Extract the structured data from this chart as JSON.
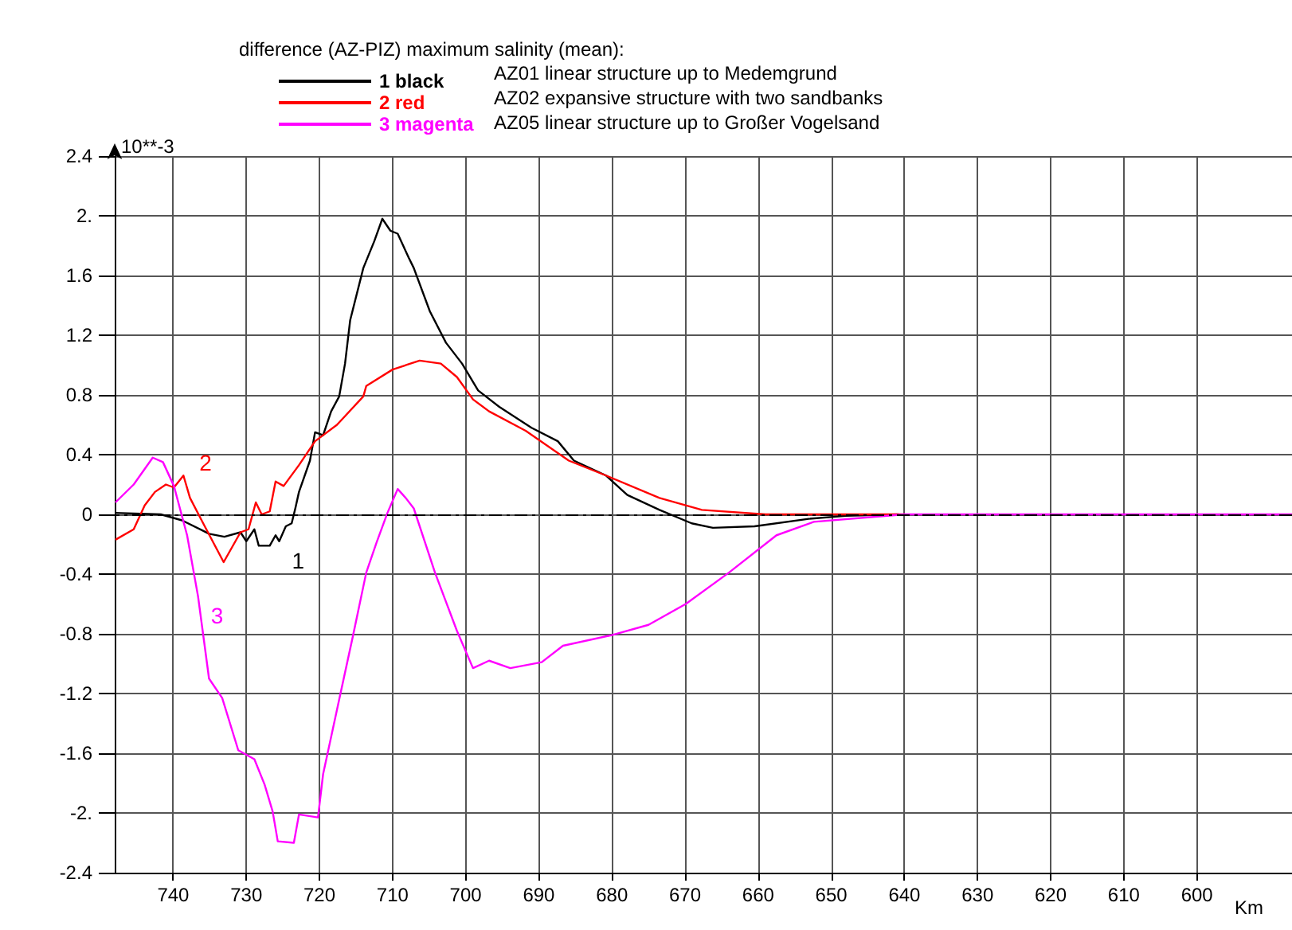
{
  "chart_data": {
    "type": "line",
    "legend_title": "difference (AZ-PIZ) maximum salinity (mean):",
    "ylabel": "10**-3",
    "xlabel": "Km",
    "xlim": [
      748,
      587
    ],
    "xticks": [
      740,
      730,
      720,
      710,
      700,
      690,
      680,
      670,
      660,
      650,
      640,
      630,
      620,
      610,
      600
    ],
    "ylim": [
      -2.4,
      2.4
    ],
    "yticks": [
      -2.4,
      {
        "value": -2,
        "label": "-2."
      },
      -1.6,
      -1.2,
      -0.8,
      -0.4,
      0,
      0.4,
      0.8,
      1.2,
      1.6,
      {
        "value": 2,
        "label": "2."
      },
      2.4
    ],
    "grid": true,
    "legend": "top",
    "marker": "none",
    "line_style": "solid",
    "ref_lines": [
      {
        "axis": "y",
        "value": 0,
        "color": "#000000",
        "line_style": "dashed"
      }
    ],
    "annotations": [
      "AZ01 linear structure up to Medemgrund",
      "AZ02 expansive structure with two sandbanks",
      "AZ05 linear structure up to Großer Vogelsand",
      {
        "text": "1",
        "x": 725.5,
        "y": -0.18
      },
      {
        "text": "2",
        "x": 738.6,
        "y": 0.26
      },
      {
        "text": "3",
        "x": 736.6,
        "y": -0.55
      }
    ],
    "series": [
      {
        "name": "1 black",
        "color": "#000000",
        "x": [
          748,
          741.7,
          738.8,
          735.1,
          733,
          730.8,
          730,
          728.9,
          728.3,
          726.8,
          726,
          725.5,
          724.6,
          723.8,
          723.3,
          722.8,
          721.3,
          720.6,
          719.5,
          718.4,
          717.3,
          716.5,
          715.8,
          714,
          712.5,
          711.4,
          710.3,
          709.3,
          707.8,
          707.1,
          704.9,
          702.7,
          700.5,
          698.3,
          695.4,
          691,
          687.4,
          685.2,
          680.8,
          677.9,
          673.5,
          669.1,
          666.2,
          660.5,
          653.1,
          648,
          640.8
        ],
        "values": [
          0.01,
          0,
          -0.04,
          -0.13,
          -0.15,
          -0.12,
          -0.18,
          -0.1,
          -0.21,
          -0.21,
          -0.14,
          -0.18,
          -0.08,
          -0.06,
          0.04,
          0.15,
          0.36,
          0.55,
          0.53,
          0.69,
          0.79,
          1.01,
          1.3,
          1.65,
          1.83,
          1.98,
          1.9,
          1.88,
          1.72,
          1.65,
          1.36,
          1.15,
          1.01,
          0.83,
          0.72,
          0.58,
          0.49,
          0.36,
          0.26,
          0.13,
          0.03,
          -0.06,
          -0.09,
          -0.08,
          -0.03,
          -0.01,
          0
        ]
      },
      {
        "name": "2 red",
        "color": "#ff0000",
        "x": [
          747.9,
          745.4,
          743.9,
          742.5,
          741,
          739.9,
          738.6,
          737.7,
          735.9,
          733.1,
          730.8,
          729.7,
          728.7,
          727.9,
          726.8,
          726,
          724.9,
          722.8,
          720.6,
          717.6,
          714,
          713.6,
          710,
          706.3,
          703.4,
          701.2,
          699,
          696.8,
          691.8,
          685.9,
          680.8,
          673.5,
          667.7,
          659,
          640
        ],
        "values": [
          -0.17,
          -0.1,
          0.06,
          0.15,
          0.2,
          0.18,
          0.26,
          0.11,
          -0.06,
          -0.32,
          -0.12,
          -0.1,
          0.08,
          0,
          0.02,
          0.22,
          0.19,
          0.33,
          0.49,
          0.6,
          0.79,
          0.86,
          0.97,
          1.03,
          1.01,
          0.92,
          0.77,
          0.69,
          0.56,
          0.36,
          0.26,
          0.11,
          0.03,
          0,
          0
        ]
      },
      {
        "name": "3 magenta",
        "color": "#ff00ff",
        "x": [
          747.9,
          745.4,
          742.8,
          741.4,
          739.9,
          738.1,
          736.6,
          735.1,
          733.3,
          731.1,
          728.9,
          727.5,
          726.4,
          725.7,
          723.5,
          722.8,
          720.2,
          719.5,
          717.3,
          715.4,
          713.6,
          712.2,
          710.7,
          709.3,
          708.2,
          707.1,
          704.2,
          701.2,
          699,
          696.8,
          693.9,
          689.6,
          686.7,
          680.1,
          675,
          669.9,
          664,
          657.5,
          652.4,
          640,
          620,
          600,
          587
        ],
        "values": [
          0.08,
          0.2,
          0.38,
          0.35,
          0.19,
          -0.14,
          -0.55,
          -1.1,
          -1.23,
          -1.58,
          -1.64,
          -1.81,
          -1.99,
          -2.19,
          -2.2,
          -2.01,
          -2.03,
          -1.74,
          -1.24,
          -0.81,
          -0.39,
          -0.19,
          0.01,
          0.17,
          0.11,
          0.04,
          -0.39,
          -0.78,
          -1.03,
          -0.98,
          -1.03,
          -0.99,
          -0.88,
          -0.81,
          -0.74,
          -0.6,
          -0.39,
          -0.14,
          -0.05,
          0,
          0,
          0,
          0
        ]
      }
    ]
  }
}
